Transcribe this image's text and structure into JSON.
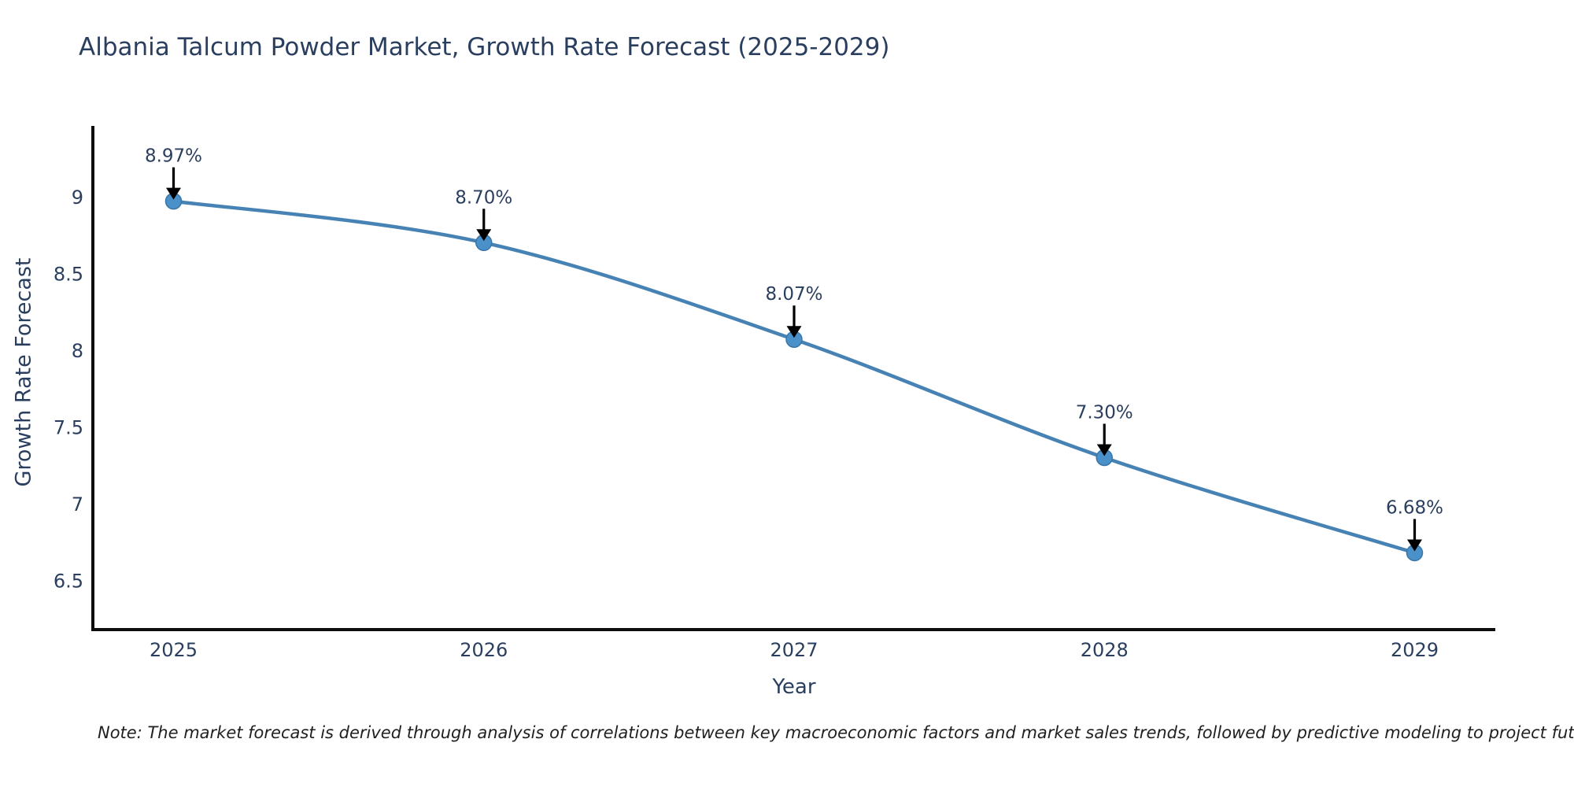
{
  "title": "Albania Talcum Powder Market, Growth Rate Forecast (2025-2029)",
  "note": "Note: The market forecast is derived through analysis of correlations between key macroeconomic factors and market sales trends, followed by predictive modeling to project future sales",
  "chart_data": {
    "type": "line",
    "title": "Albania Talcum Powder Market, Growth Rate Forecast (2025-2029)",
    "xlabel": "Year",
    "ylabel": "Growth Rate Forecast",
    "x": [
      2025,
      2026,
      2027,
      2028,
      2029
    ],
    "series": [
      {
        "name": "Growth Rate Forecast",
        "values": [
          8.97,
          8.7,
          8.07,
          7.3,
          6.68
        ]
      }
    ],
    "point_labels": [
      "8.97%",
      "8.70%",
      "8.07%",
      "7.30%",
      "6.68%"
    ],
    "x_ticks": [
      "2025",
      "2026",
      "2027",
      "2028",
      "2029"
    ],
    "y_ticks": [
      9,
      8.5,
      8,
      7.5,
      7,
      6.5
    ],
    "y_tick_labels": [
      "9",
      "8.5",
      "8",
      "7.5",
      "7",
      "6.5"
    ],
    "x_range": [
      2024.74,
      2029.26
    ],
    "y_range": [
      6.18,
      9.46
    ],
    "grid": false,
    "legend_position": "none",
    "line_color": "#4682b4",
    "marker_color": "#4a90c9",
    "marker_edge_color": "#3a76a8",
    "axis_color": "#0d0d0d",
    "text_color": "#2a3f5f",
    "annotation_color": "#2a3f5f",
    "annotation_arrow_color": "#000000",
    "background_color": "#ffffff"
  }
}
